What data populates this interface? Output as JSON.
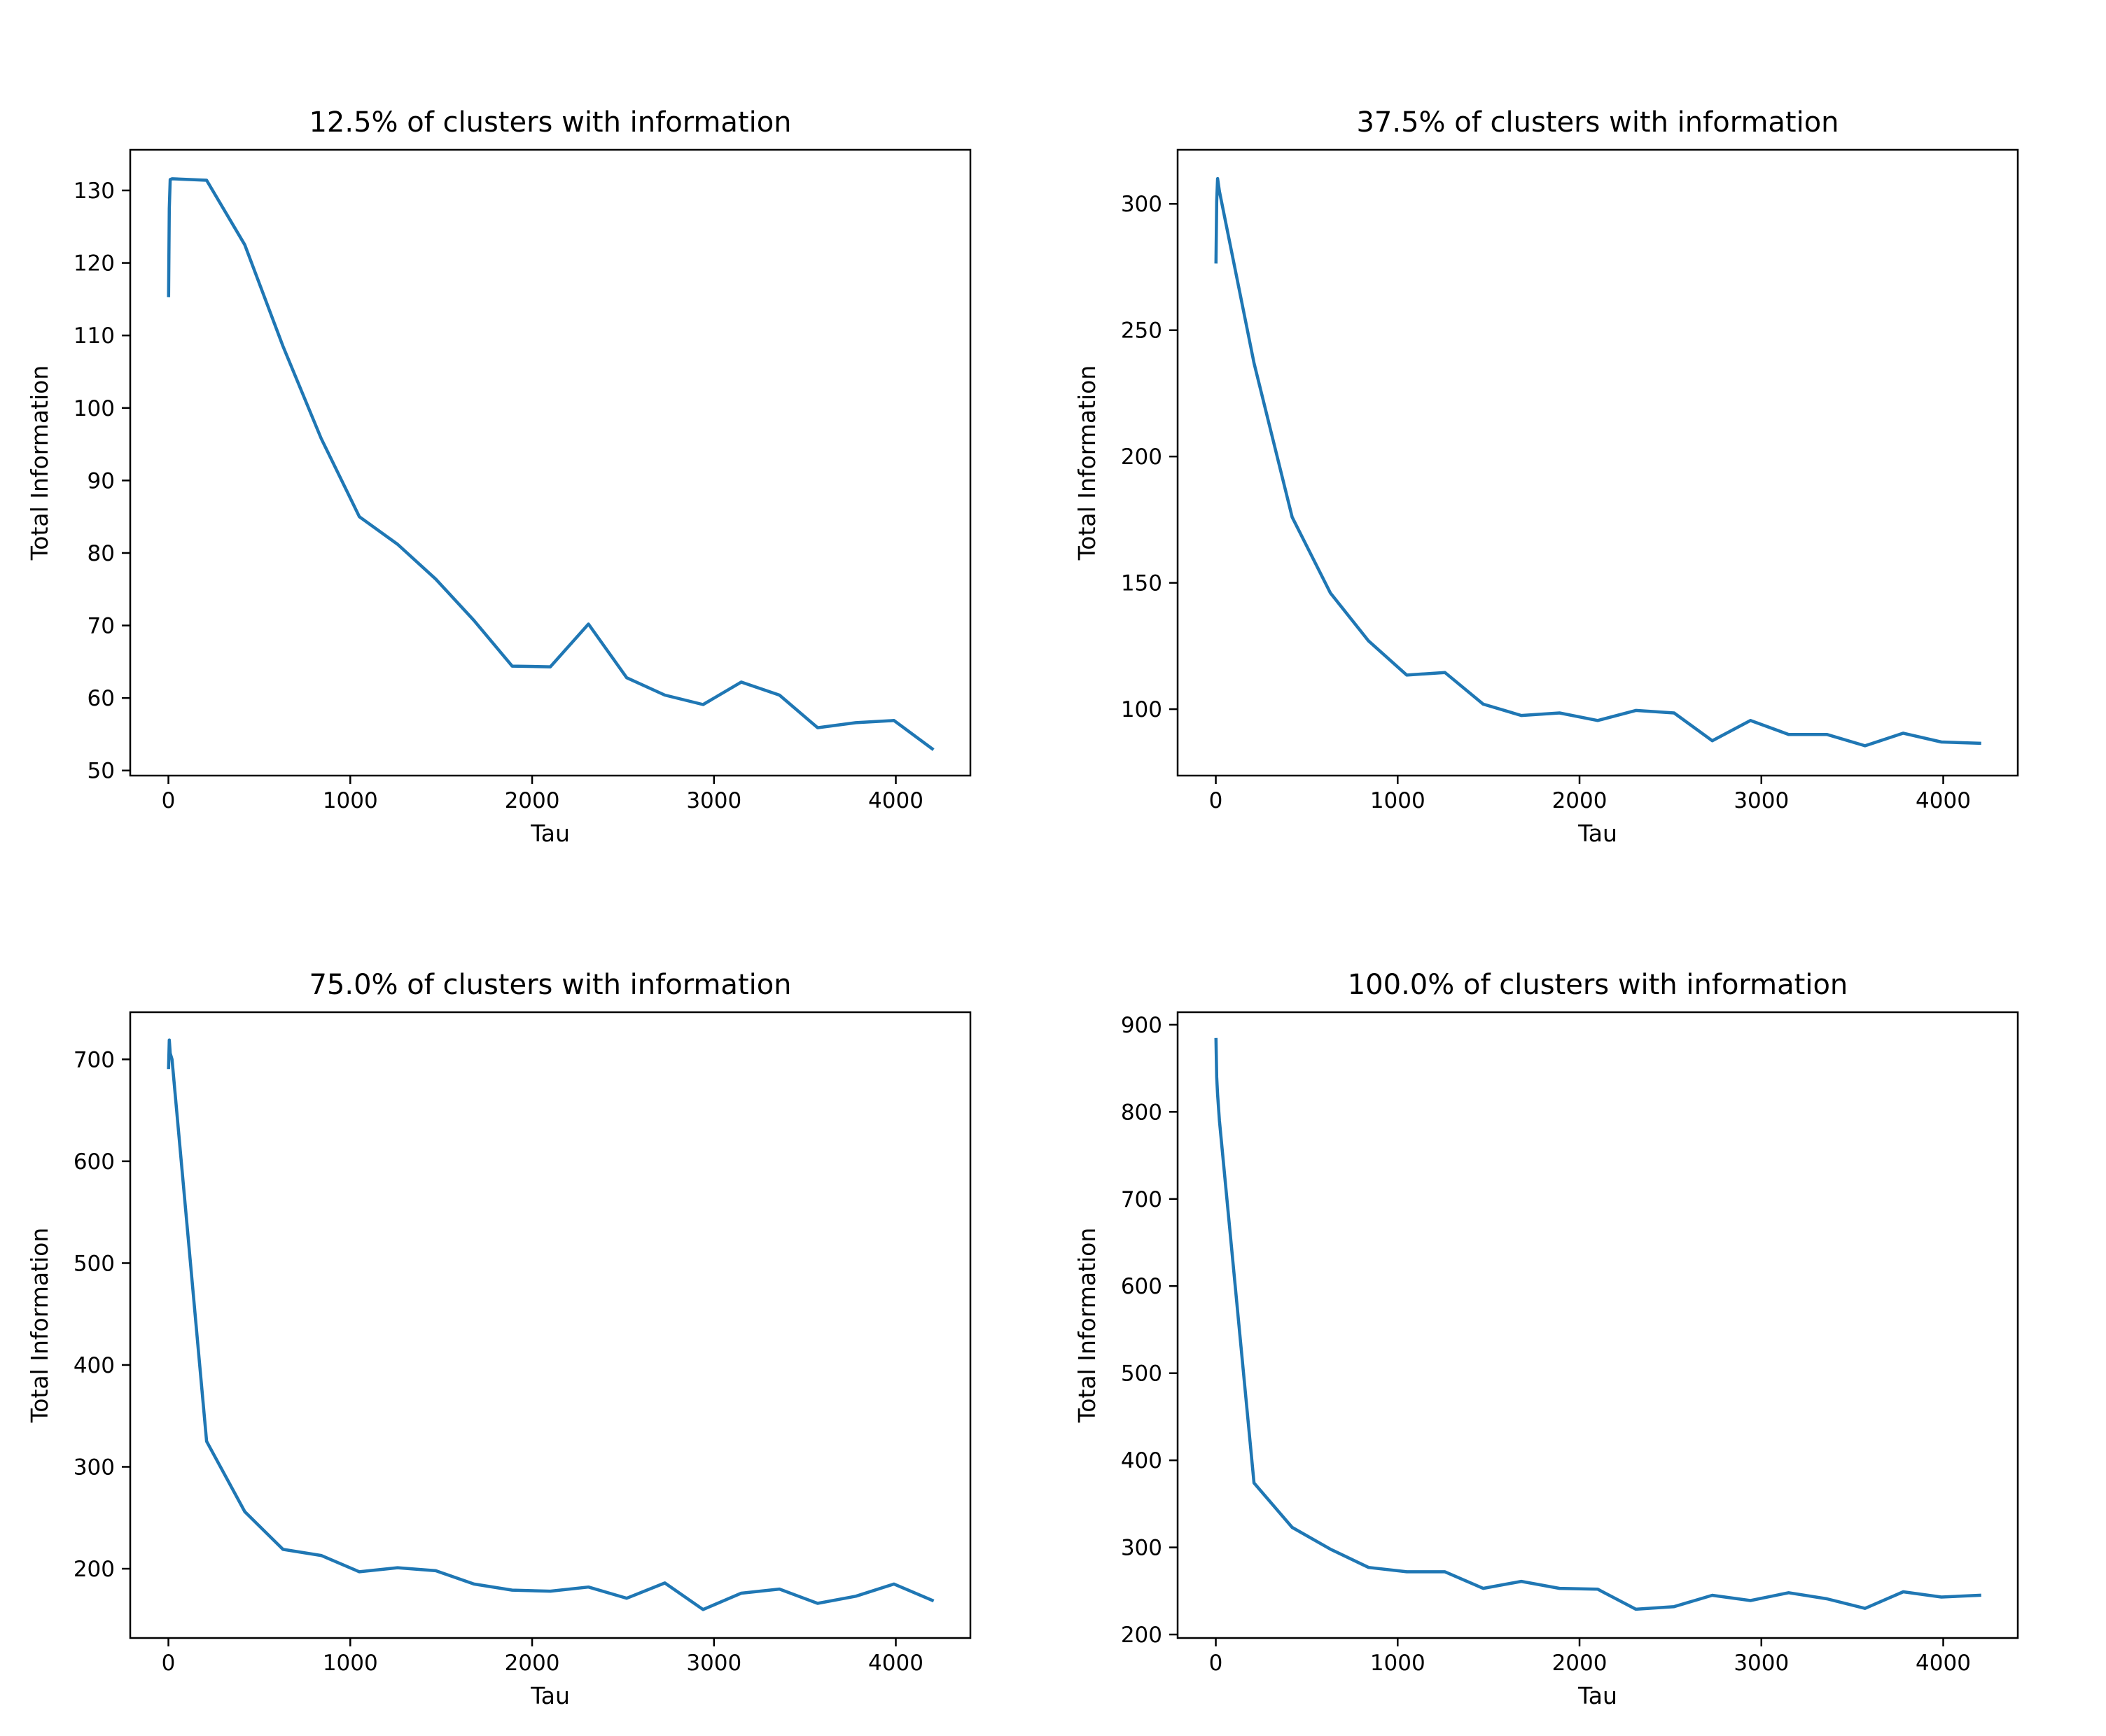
{
  "chart_data": [
    {
      "type": "line",
      "title": "12.5% of clusters with information",
      "xlabel": "Tau",
      "ylabel": "Total Information",
      "xlim": [
        -210,
        4410
      ],
      "ylim": [
        49.3,
        135.6
      ],
      "xticks": [
        0,
        1000,
        2000,
        3000,
        4000
      ],
      "yticks": [
        50,
        60,
        70,
        80,
        90,
        100,
        110,
        120,
        130
      ],
      "line_color": "#1f77b4",
      "x": [
        1,
        5,
        10,
        20,
        210,
        420,
        630,
        840,
        1050,
        1260,
        1470,
        1680,
        1890,
        2100,
        2310,
        2520,
        2730,
        2940,
        3150,
        3360,
        3570,
        3780,
        3990,
        4200
      ],
      "y": [
        115.5,
        127.5,
        131.5,
        131.6,
        131.4,
        122.5,
        108.5,
        95.8,
        85.0,
        81.2,
        76.4,
        70.7,
        64.4,
        64.3,
        70.2,
        62.8,
        60.4,
        59.1,
        62.2,
        60.4,
        55.9,
        56.6,
        56.9,
        53.0
      ]
    },
    {
      "type": "line",
      "title": "37.5% of clusters with information",
      "xlabel": "Tau",
      "ylabel": "Total Information",
      "xlim": [
        -210,
        4410
      ],
      "ylim": [
        73.7,
        321.4
      ],
      "xticks": [
        0,
        1000,
        2000,
        3000,
        4000
      ],
      "yticks": [
        100,
        150,
        200,
        250,
        300
      ],
      "line_color": "#1f77b4",
      "x": [
        1,
        5,
        10,
        20,
        210,
        420,
        630,
        840,
        1050,
        1260,
        1470,
        1680,
        1890,
        2100,
        2310,
        2520,
        2730,
        2940,
        3150,
        3360,
        3570,
        3780,
        3990,
        4200
      ],
      "y": [
        277,
        301,
        310,
        305,
        237,
        176,
        146,
        127,
        113.5,
        114.5,
        102,
        97.5,
        98.5,
        95.5,
        99.5,
        98.5,
        87.5,
        95.5,
        90,
        90,
        85.5,
        90.5,
        87,
        86.5
      ]
    },
    {
      "type": "line",
      "title": "75.0% of clusters with information",
      "xlabel": "Tau",
      "ylabel": "Total Information",
      "xlim": [
        -210,
        4410
      ],
      "ylim": [
        132.0,
        746.3
      ],
      "xticks": [
        0,
        1000,
        2000,
        3000,
        4000
      ],
      "yticks": [
        200,
        300,
        400,
        500,
        600,
        700
      ],
      "line_color": "#1f77b4",
      "x": [
        1,
        5,
        10,
        20,
        210,
        420,
        630,
        840,
        1050,
        1260,
        1470,
        1680,
        1890,
        2100,
        2310,
        2520,
        2730,
        2940,
        3150,
        3360,
        3570,
        3780,
        3990,
        4200
      ],
      "y": [
        692,
        719,
        706,
        700,
        325,
        256,
        219,
        213,
        197,
        201,
        198,
        185,
        179,
        178,
        182,
        171,
        186,
        160,
        176,
        180,
        166,
        173,
        185,
        169
      ]
    },
    {
      "type": "line",
      "title": "100.0% of clusters with information",
      "xlabel": "Tau",
      "ylabel": "Total Information",
      "xlim": [
        -210,
        4410
      ],
      "ylim": [
        196.0,
        914.4
      ],
      "xticks": [
        0,
        1000,
        2000,
        3000,
        4000
      ],
      "yticks": [
        200,
        300,
        400,
        500,
        600,
        700,
        800,
        900
      ],
      "line_color": "#1f77b4",
      "x": [
        1,
        5,
        10,
        20,
        210,
        420,
        630,
        840,
        1050,
        1260,
        1470,
        1680,
        1890,
        2100,
        2310,
        2520,
        2730,
        2940,
        3150,
        3360,
        3570,
        3780,
        3990,
        4200
      ],
      "y": [
        883,
        840,
        820,
        790,
        374,
        323,
        298,
        277,
        272,
        272,
        253,
        261,
        253,
        252,
        229,
        232,
        245,
        239,
        248,
        241,
        230,
        249,
        243,
        245
      ]
    }
  ]
}
